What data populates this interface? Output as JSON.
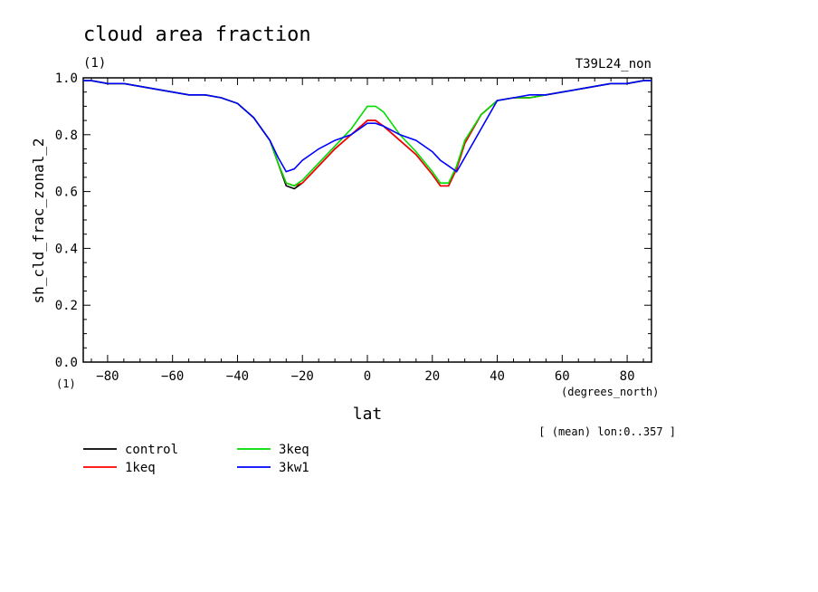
{
  "header": {
    "title": "cloud area fraction",
    "units": "(1)",
    "run": "T39L24_non"
  },
  "footer": {
    "average_note": "[ (mean) lon:0..357 ]"
  },
  "chart_data": {
    "type": "line",
    "title": "cloud area fraction",
    "xlabel": "lat",
    "xunits": "(degrees_north)",
    "ylabel": "sh_cld_frac_zonal_2",
    "yunits": "(1)",
    "xlim": [
      -87.5,
      87.5
    ],
    "ylim": [
      0.0,
      1.0
    ],
    "xticks": [
      "-80",
      "-60",
      "-40",
      "-20",
      "0",
      "20",
      "40",
      "60",
      "80"
    ],
    "yticks": [
      "0.0",
      "0.2",
      "0.4",
      "0.6",
      "0.8",
      "1.0"
    ],
    "x": [
      -87.5,
      -85,
      -80,
      -75,
      -70,
      -65,
      -60,
      -55,
      -50,
      -45,
      -40,
      -35,
      -30,
      -27.5,
      -25,
      -22.5,
      -20,
      -15,
      -10,
      -5,
      0,
      2.5,
      5,
      10,
      15,
      20,
      22.5,
      25,
      27.5,
      30,
      35,
      40,
      45,
      50,
      55,
      60,
      65,
      70,
      75,
      80,
      85,
      87.5
    ],
    "series": [
      {
        "name": "control",
        "color": "#000000",
        "values": [
          0.99,
          0.99,
          0.98,
          0.98,
          0.97,
          0.96,
          0.95,
          0.94,
          0.94,
          0.93,
          0.91,
          0.86,
          0.78,
          0.7,
          0.62,
          0.61,
          0.63,
          0.69,
          0.75,
          0.8,
          0.85,
          0.85,
          0.83,
          0.78,
          0.73,
          0.66,
          0.62,
          0.62,
          0.68,
          0.77,
          0.87,
          0.92,
          0.93,
          0.93,
          0.94,
          0.95,
          0.96,
          0.97,
          0.98,
          0.98,
          0.99,
          0.99
        ]
      },
      {
        "name": "1keq",
        "color": "#ff0000",
        "values": [
          0.99,
          0.99,
          0.98,
          0.98,
          0.97,
          0.96,
          0.95,
          0.94,
          0.94,
          0.93,
          0.91,
          0.86,
          0.78,
          0.7,
          0.63,
          0.62,
          0.63,
          0.69,
          0.75,
          0.8,
          0.85,
          0.85,
          0.83,
          0.78,
          0.73,
          0.66,
          0.62,
          0.62,
          0.68,
          0.77,
          0.87,
          0.92,
          0.93,
          0.93,
          0.94,
          0.95,
          0.96,
          0.97,
          0.98,
          0.98,
          0.99,
          0.99
        ]
      },
      {
        "name": "3keq",
        "color": "#00dd00",
        "values": [
          0.99,
          0.99,
          0.98,
          0.98,
          0.97,
          0.96,
          0.95,
          0.94,
          0.94,
          0.93,
          0.91,
          0.86,
          0.78,
          0.7,
          0.63,
          0.62,
          0.64,
          0.7,
          0.76,
          0.82,
          0.9,
          0.9,
          0.88,
          0.8,
          0.74,
          0.67,
          0.63,
          0.63,
          0.69,
          0.78,
          0.87,
          0.92,
          0.93,
          0.93,
          0.94,
          0.95,
          0.96,
          0.97,
          0.98,
          0.98,
          0.99,
          0.99
        ]
      },
      {
        "name": "3kw1",
        "color": "#0000ff",
        "values": [
          0.99,
          0.99,
          0.98,
          0.98,
          0.97,
          0.96,
          0.95,
          0.94,
          0.94,
          0.93,
          0.91,
          0.86,
          0.78,
          0.72,
          0.67,
          0.68,
          0.71,
          0.75,
          0.78,
          0.8,
          0.84,
          0.84,
          0.83,
          0.8,
          0.78,
          0.74,
          0.71,
          0.69,
          0.67,
          0.72,
          0.82,
          0.92,
          0.93,
          0.94,
          0.94,
          0.95,
          0.96,
          0.97,
          0.98,
          0.98,
          0.99,
          0.99
        ]
      }
    ],
    "legend_position": "bottom-left",
    "grid": false
  }
}
